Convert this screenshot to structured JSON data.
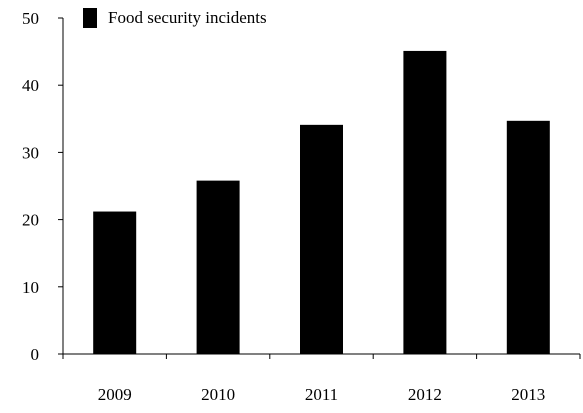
{
  "chart_data": {
    "type": "bar",
    "categories": [
      "2009",
      "2010",
      "2011",
      "2012",
      "2013"
    ],
    "series": [
      {
        "name": "Food security incidents",
        "values": [
          21.2,
          25.8,
          34.1,
          45.1,
          34.7
        ]
      }
    ],
    "ylim": [
      0,
      50
    ],
    "yticks": [
      0,
      10,
      20,
      30,
      40,
      50
    ],
    "title": "",
    "xlabel": "",
    "ylabel": "",
    "grid": false,
    "legend_position": "top-left",
    "bar_color": "#000000"
  }
}
